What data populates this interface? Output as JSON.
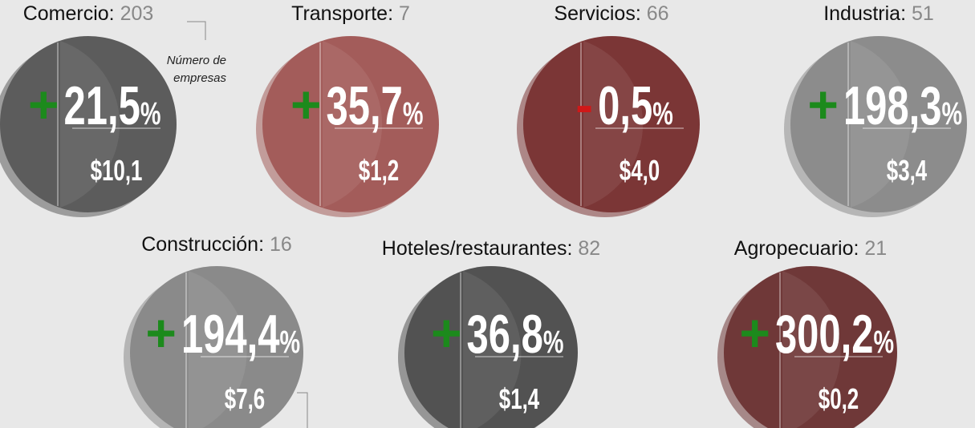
{
  "percent_sign": "%",
  "annotation": {
    "line1": "Número de",
    "line2": "empresas"
  },
  "sectors": [
    {
      "name": "Comercio:",
      "count": "203",
      "sign": "+",
      "change": "21,5",
      "amount": "$10,1",
      "color": "#5c5c5c"
    },
    {
      "name": "Transporte:",
      "count": "7",
      "sign": "+",
      "change": "35,7",
      "amount": "$1,2",
      "color": "#a35c5a"
    },
    {
      "name": "Servicios:",
      "count": "66",
      "sign": "-",
      "change": "0,5",
      "amount": "$4,0",
      "color": "#7b3636"
    },
    {
      "name": "Industria:",
      "count": "51",
      "sign": "+",
      "change": "198,3",
      "amount": "$3,4",
      "color": "#8c8c8c"
    },
    {
      "name": "Construcción:",
      "count": "16",
      "sign": "+",
      "change": "194,4",
      "amount": "$7,6",
      "color": "#8a8a8a"
    },
    {
      "name": "Hoteles/restaurantes:",
      "count": "82",
      "sign": "+",
      "change": "36,8",
      "amount": "$1,4",
      "color": "#525252"
    },
    {
      "name": "Agropecuario:",
      "count": "21",
      "sign": "+",
      "change": "300,2",
      "amount": "$0,2",
      "color": "#6f3838"
    }
  ]
}
